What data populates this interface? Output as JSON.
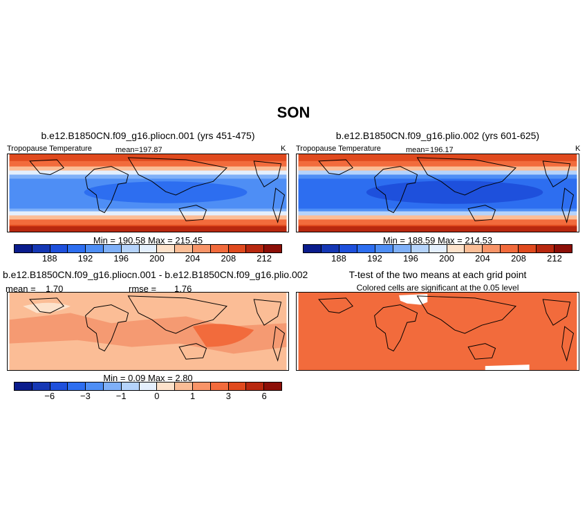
{
  "figure_title": "SON",
  "colors": {
    "scale": [
      "#0a1c8c",
      "#1537b4",
      "#1e50dc",
      "#2d6ef0",
      "#4e8ef5",
      "#7fb0f8",
      "#b5d3fb",
      "#e4effd",
      "#fde2cb",
      "#fbbd96",
      "#f89468",
      "#f26b3c",
      "#e04a1e",
      "#b8280f",
      "#8c0f08"
    ],
    "diff_fill": "#f59a72",
    "ttest_fill": "#f26b3c"
  },
  "panels": {
    "p1": {
      "title": "b.e12.B1850CN.f09_g16.pliocn.001 (yrs 451-475)",
      "left_label": "Tropopause Temperature",
      "mean_label": "mean=",
      "mean_value": "197.87",
      "units": "K",
      "stats_label": "Min =  190.58  Max =  215.45",
      "colorbar_ticks": [
        "188",
        "192",
        "196",
        "200",
        "204",
        "208",
        "212"
      ]
    },
    "p2": {
      "title": "b.e12.B1850CN.f09_g16.plio.002 (yrs 601-625)",
      "left_label": "Tropopause Temperature",
      "mean_label": "mean=",
      "mean_value": "196.17",
      "units": "K",
      "stats_label": "Min =  188.59  Max =  214.53",
      "colorbar_ticks": [
        "188",
        "192",
        "196",
        "200",
        "204",
        "208",
        "212"
      ]
    },
    "p3": {
      "title": "b.e12.B1850CN.f09_g16.pliocn.001 - b.e12.B1850CN.f09_g16.plio.002",
      "mean_label": "mean =",
      "mean_value": "1.70",
      "rmse_label": "rmse =",
      "rmse_value": "1.76",
      "stats_label": "Min =   0.09  Max =   2.80",
      "colorbar_ticks": [
        "−6",
        "−3",
        "−1",
        "0",
        "1",
        "3",
        "6"
      ]
    },
    "p4": {
      "title": "T-test of the two means at each grid point",
      "subtitle": "Colored cells are significant at the 0.05 level"
    }
  }
}
